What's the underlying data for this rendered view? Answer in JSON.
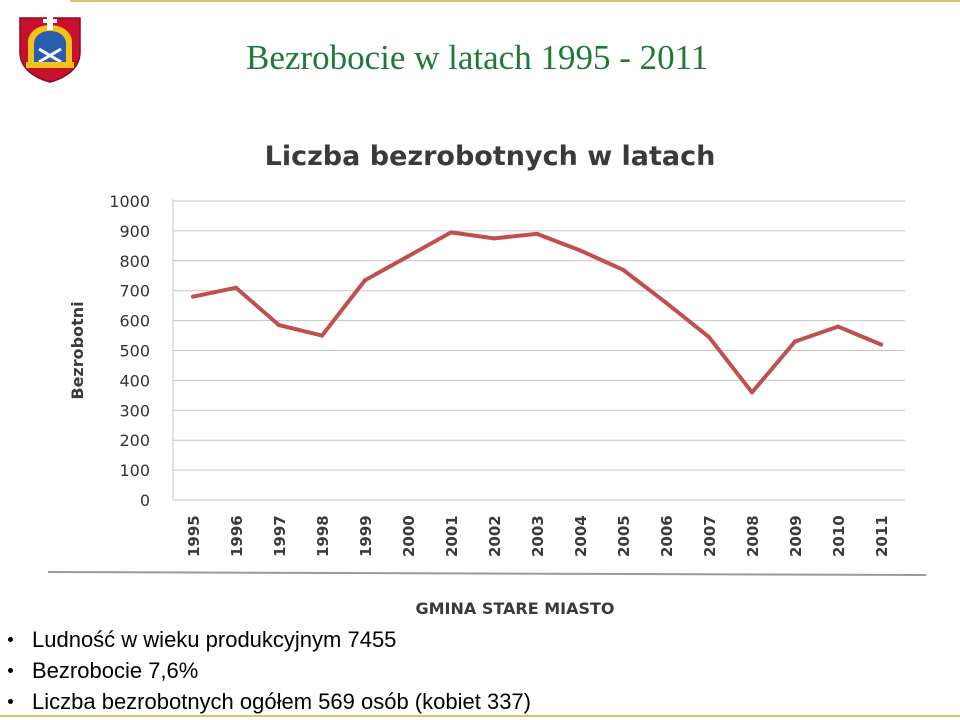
{
  "slide": {
    "title": "Bezrobocie w latach  1995 - 2011",
    "bullets": [
      "Ludność w wieku produkcyjnym 7455",
      "Bezrobocie 7,6%",
      "Liczba bezrobotnych ogółem 569 osób (kobiet 337)"
    ],
    "colors": {
      "title": "#1f7a3a",
      "accent_line": "#d9c36b",
      "series": "#c0504d"
    },
    "icons": {
      "logo": "coat-of-arms-icon"
    }
  },
  "chart_data": {
    "type": "line",
    "title": "Liczba bezrobotnych w latach",
    "xlabel": "GMINA STARE MIASTO",
    "ylabel": "Bezrobotni",
    "categories": [
      "1995",
      "1996",
      "1997",
      "1998",
      "1999",
      "2000",
      "2001",
      "2002",
      "2003",
      "2004",
      "2005",
      "2006",
      "2007",
      "2008",
      "2009",
      "2010",
      "2011"
    ],
    "series": [
      {
        "values": [
          680,
          710,
          585,
          550,
          735,
          815,
          895,
          875,
          890,
          835,
          770,
          660,
          545,
          360,
          530,
          580,
          520
        ]
      }
    ],
    "yticks": [
      0,
      100,
      200,
      300,
      400,
      500,
      600,
      700,
      800,
      900,
      1000
    ],
    "ylim": [
      0,
      1000
    ],
    "grid": true,
    "legend": "none"
  }
}
